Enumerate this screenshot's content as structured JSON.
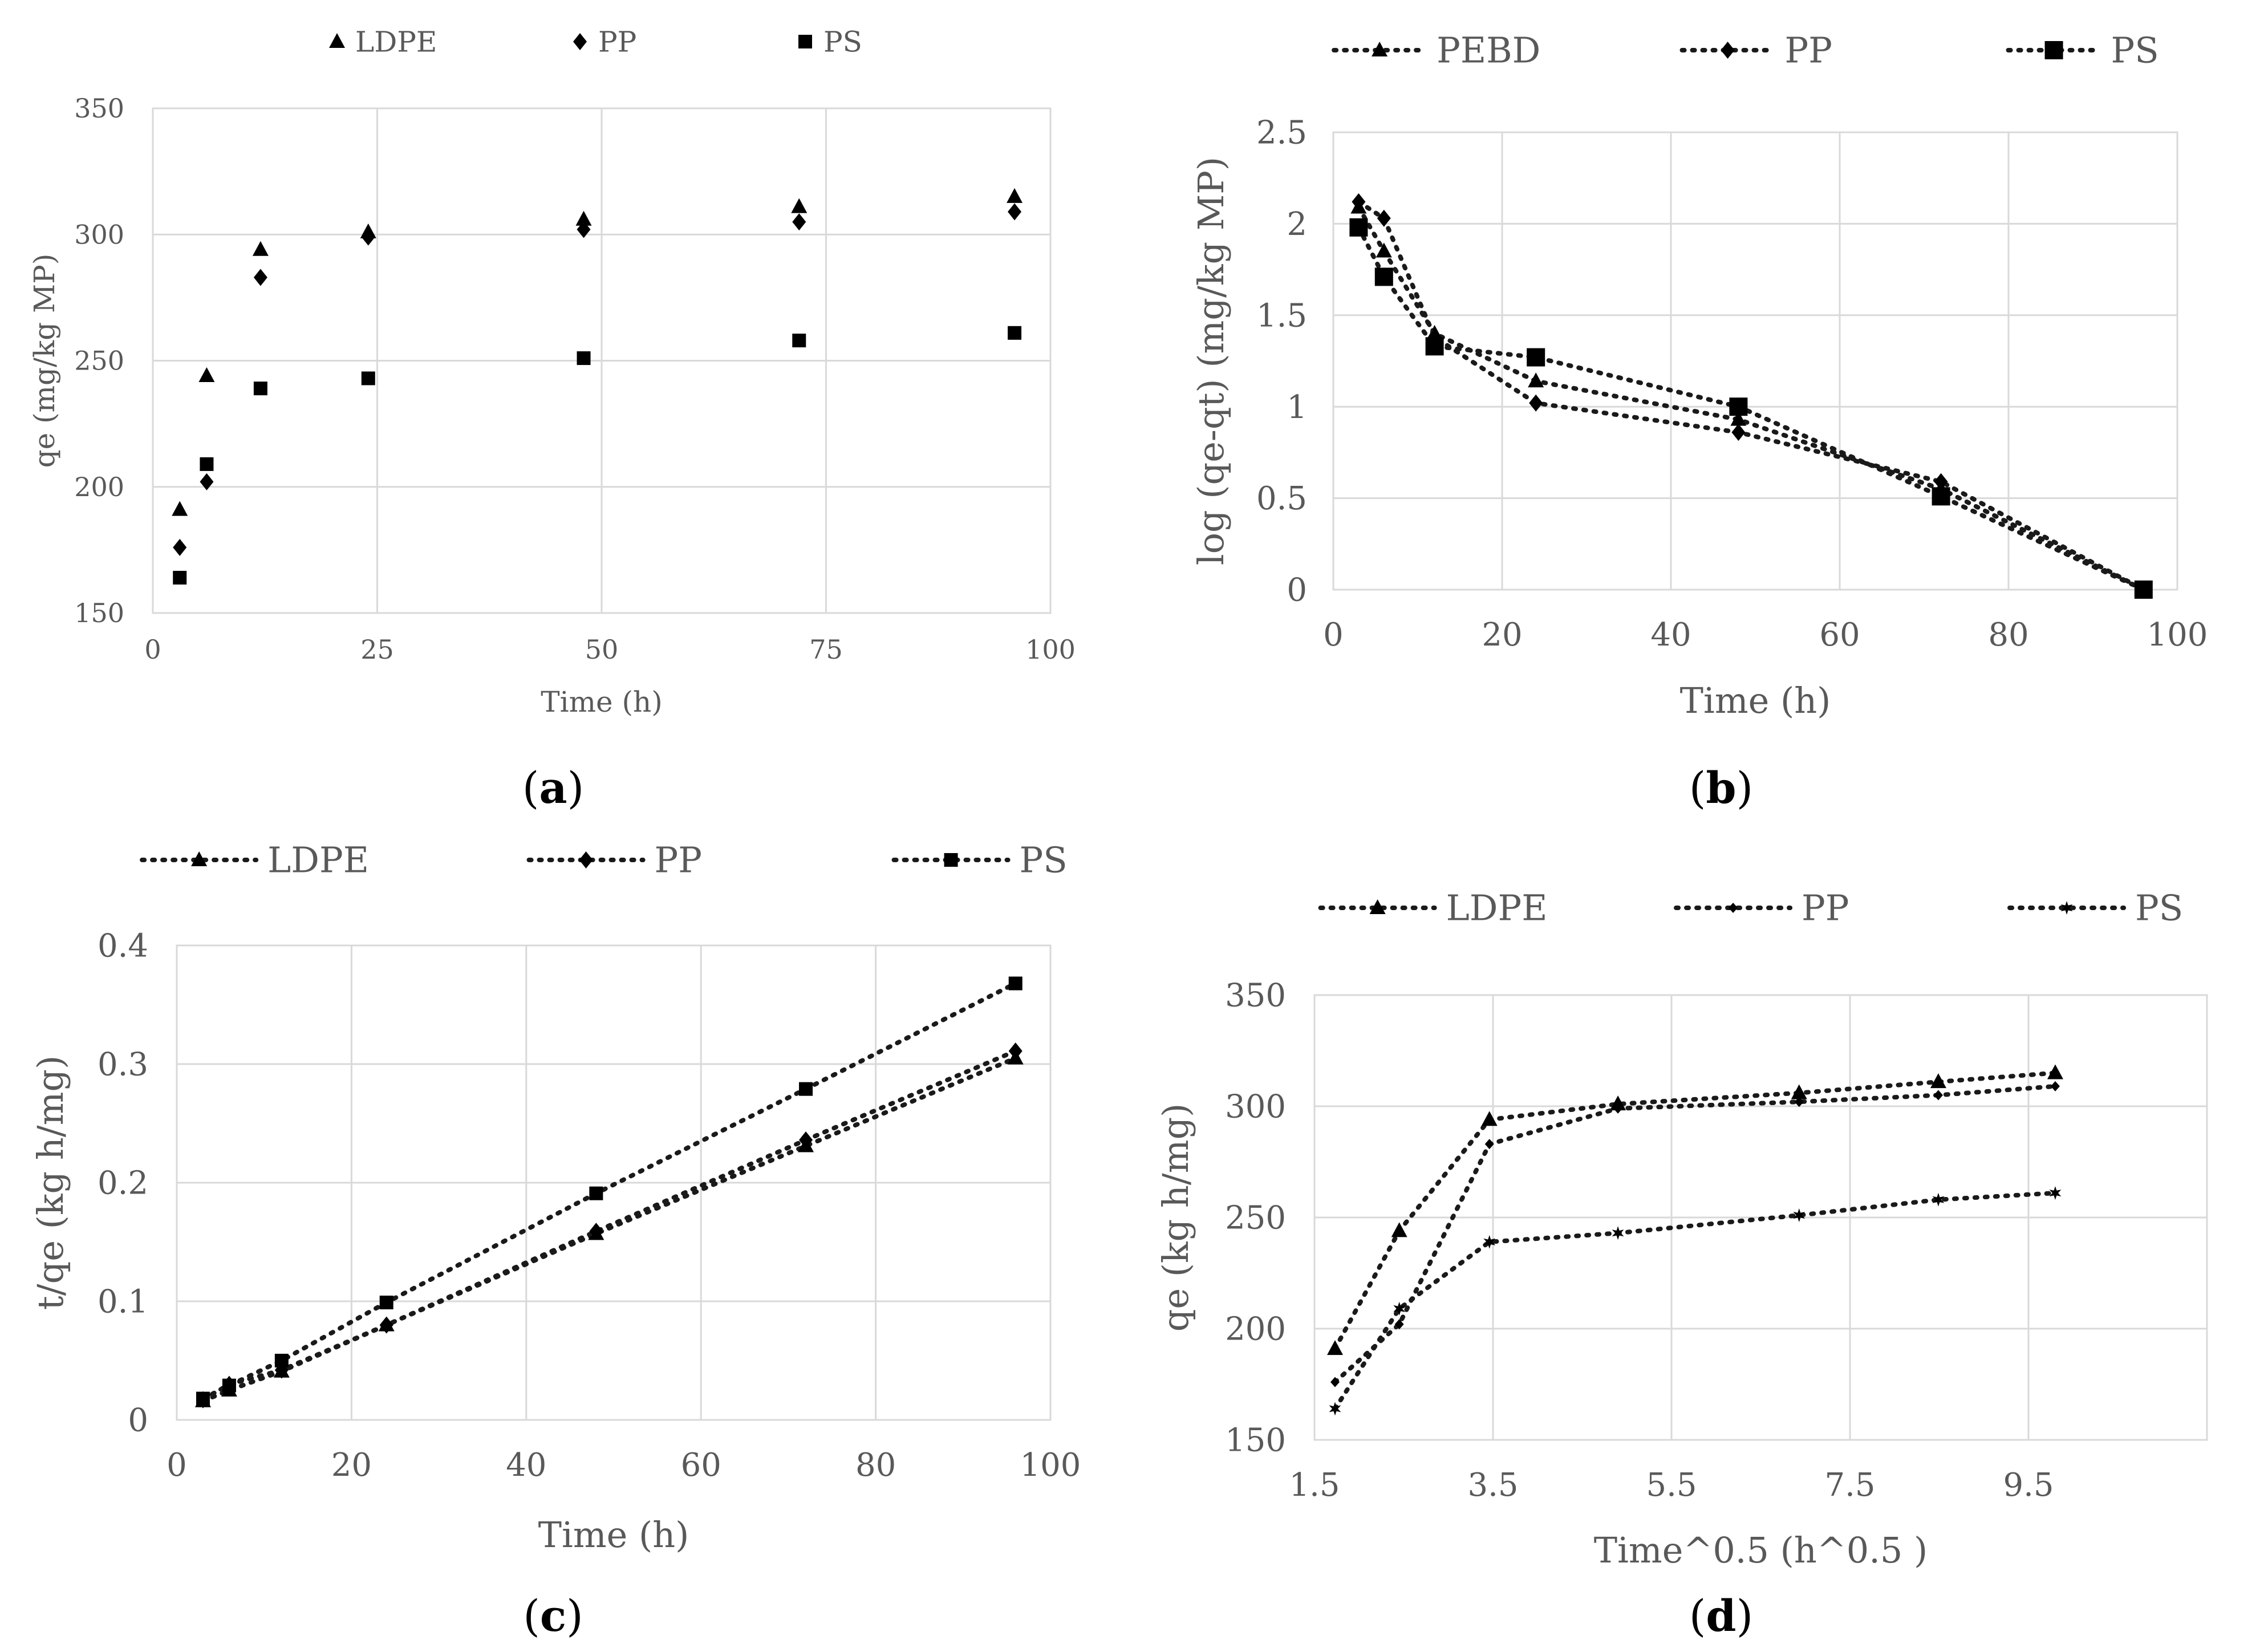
{
  "figure": {
    "captions": [
      {
        "open": "(",
        "letter": "a",
        "close": ")"
      },
      {
        "open": "(",
        "letter": "b",
        "close": ")"
      },
      {
        "open": "(",
        "letter": "c",
        "close": ")"
      },
      {
        "open": "(",
        "letter": "d",
        "close": ")"
      }
    ]
  },
  "chart_data": [
    {
      "id": "a",
      "type": "scatter",
      "title": "",
      "xlabel": "Time (h)",
      "ylabel": "qe (mg/kg MP)",
      "xlim": [
        0,
        100
      ],
      "ylim": [
        150,
        350
      ],
      "xticks": [
        0,
        25,
        50,
        75,
        100
      ],
      "yticks": [
        150,
        200,
        250,
        300,
        350
      ],
      "grid": true,
      "legend_position": "top-center",
      "connected": false,
      "series": [
        {
          "name": "LDPE",
          "marker": "triangle",
          "x": [
            3,
            6,
            12,
            24,
            48,
            72,
            96
          ],
          "y": [
            191,
            244,
            294,
            301,
            306,
            311,
            315
          ]
        },
        {
          "name": "PP",
          "marker": "diamond",
          "x": [
            3,
            6,
            12,
            24,
            48,
            72,
            96
          ],
          "y": [
            176,
            202,
            283,
            299,
            302,
            305,
            309
          ]
        },
        {
          "name": "PS",
          "marker": "square",
          "x": [
            3,
            6,
            12,
            24,
            48,
            72,
            96
          ],
          "y": [
            164,
            209,
            239,
            243,
            251,
            258,
            261
          ]
        }
      ]
    },
    {
      "id": "b",
      "type": "line",
      "title": "",
      "xlabel": "Time (h)",
      "ylabel": "log (qe-qt) (mg/kg MP)",
      "xlim": [
        0,
        100
      ],
      "ylim": [
        0,
        2.5
      ],
      "xticks": [
        0,
        20,
        40,
        60,
        80,
        100
      ],
      "yticks": [
        0,
        0.5,
        1,
        1.5,
        2,
        2.5
      ],
      "grid": true,
      "legend_position": "top-center",
      "connected": true,
      "series": [
        {
          "name": "PEBD",
          "marker": "triangle",
          "x": [
            3,
            6,
            12,
            24,
            48,
            72,
            96
          ],
          "y": [
            2.09,
            1.85,
            1.4,
            1.14,
            0.93,
            0.55,
            0
          ]
        },
        {
          "name": "PP",
          "marker": "diamond",
          "x": [
            3,
            6,
            12,
            24,
            48,
            72,
            96
          ],
          "y": [
            2.12,
            2.03,
            1.38,
            1.02,
            0.86,
            0.59,
            0
          ]
        },
        {
          "name": "PS",
          "marker": "bigsquare",
          "x": [
            3,
            6,
            12,
            24,
            48,
            72,
            96
          ],
          "y": [
            1.98,
            1.71,
            1.33,
            1.27,
            1.0,
            0.51,
            0
          ]
        }
      ]
    },
    {
      "id": "c",
      "type": "line",
      "title": "",
      "xlabel": "Time (h)",
      "ylabel": "t/qe (kg h/mg)",
      "xlim": [
        0,
        100
      ],
      "ylim": [
        0,
        0.4
      ],
      "xticks": [
        0,
        20,
        40,
        60,
        80,
        100
      ],
      "yticks": [
        0,
        0.1,
        0.2,
        0.3,
        0.4
      ],
      "grid": true,
      "legend_position": "top-center",
      "connected": true,
      "series": [
        {
          "name": "LDPE",
          "marker": "triangle",
          "x": [
            3,
            6,
            12,
            24,
            48,
            72,
            96
          ],
          "y": [
            0.016,
            0.025,
            0.041,
            0.08,
            0.157,
            0.231,
            0.305
          ]
        },
        {
          "name": "PP",
          "marker": "diamond",
          "x": [
            3,
            6,
            12,
            24,
            48,
            72,
            96
          ],
          "y": [
            0.017,
            0.03,
            0.042,
            0.08,
            0.159,
            0.236,
            0.311
          ]
        },
        {
          "name": "PS",
          "marker": "square",
          "x": [
            3,
            6,
            12,
            24,
            48,
            72,
            96
          ],
          "y": [
            0.018,
            0.029,
            0.05,
            0.099,
            0.191,
            0.279,
            0.368
          ]
        }
      ]
    },
    {
      "id": "d",
      "type": "line",
      "title": "",
      "xlabel": "Time^0.5 (h^0.5 )",
      "ylabel": "qe (kg h/mg)",
      "xlim": [
        1.5,
        11.5
      ],
      "ylim": [
        150,
        350
      ],
      "xticks": [
        1.5,
        3.5,
        5.5,
        7.5,
        9.5
      ],
      "yticks": [
        150,
        200,
        250,
        300,
        350
      ],
      "grid": true,
      "legend_position": "top-center",
      "connected": true,
      "series": [
        {
          "name": "LDPE",
          "marker": "triangle",
          "x": [
            1.73,
            2.45,
            3.46,
            4.9,
            6.93,
            8.49,
            9.8
          ],
          "y": [
            191,
            244,
            294,
            301,
            306,
            311,
            315
          ]
        },
        {
          "name": "PP",
          "marker": "smalldiamond",
          "x": [
            1.73,
            2.45,
            3.46,
            4.9,
            6.93,
            8.49,
            9.8
          ],
          "y": [
            176,
            202,
            283,
            299,
            302,
            305,
            309
          ]
        },
        {
          "name": "PS",
          "marker": "star",
          "x": [
            1.73,
            2.45,
            3.46,
            4.9,
            6.93,
            8.49,
            9.8
          ],
          "y": [
            164,
            209,
            239,
            243,
            251,
            258,
            261
          ]
        }
      ]
    }
  ]
}
